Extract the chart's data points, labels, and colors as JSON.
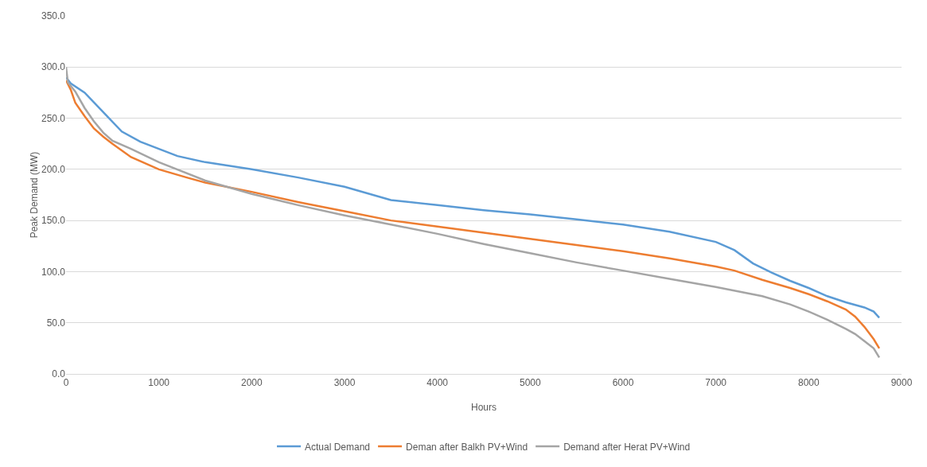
{
  "chart_data": {
    "type": "line",
    "xlabel": "Hours",
    "ylabel": "Peak Demand (MW)",
    "xlim": [
      0,
      9000
    ],
    "xticks": [
      0,
      1000,
      2000,
      3000,
      4000,
      5000,
      6000,
      7000,
      8000,
      9000
    ],
    "ylim": [
      0,
      350
    ],
    "yticks": [
      {
        "value": 0,
        "label": "0.0"
      },
      {
        "value": 50,
        "label": "50.0"
      },
      {
        "value": 100,
        "label": "100.0"
      },
      {
        "value": 150,
        "label": "150.0"
      },
      {
        "value": 200,
        "label": "200.0"
      },
      {
        "value": 250,
        "label": "250.0"
      },
      {
        "value": 300,
        "label": "300.0"
      },
      {
        "value": 350,
        "label": "350.0"
      }
    ],
    "grid": "y",
    "legend": "bottom",
    "marker": "none",
    "line_style": "solid",
    "series": [
      {
        "name": "Actual Demand",
        "color": "#5b9bd5",
        "x": [
          0,
          50,
          200,
          400,
          600,
          800,
          1000,
          1200,
          1500,
          2000,
          2500,
          3000,
          3500,
          4000,
          4500,
          5000,
          5500,
          6000,
          6500,
          7000,
          7200,
          7400,
          7600,
          7800,
          8000,
          8200,
          8400,
          8600,
          8700,
          8760
        ],
        "values": [
          290,
          284,
          275,
          256,
          237,
          227,
          220,
          213,
          207,
          200,
          192,
          183,
          170,
          165,
          160,
          156,
          151,
          146,
          139,
          129,
          121,
          108,
          99,
          91,
          84,
          76,
          70,
          65,
          61,
          55
        ]
      },
      {
        "name": "Deman after Balkh PV+Wind",
        "color": "#ed7d31",
        "x": [
          0,
          50,
          100,
          200,
          300,
          400,
          500,
          700,
          1000,
          1300,
          1500,
          2000,
          2500,
          3000,
          3500,
          4000,
          4500,
          5000,
          5500,
          6000,
          6500,
          7000,
          7200,
          7500,
          7800,
          8000,
          8200,
          8400,
          8500,
          8600,
          8700,
          8760
        ],
        "values": [
          287,
          278,
          265,
          252,
          240,
          232,
          225,
          212,
          200,
          192,
          187,
          178,
          168,
          159,
          150,
          144,
          138,
          132,
          126,
          120,
          113,
          105,
          101,
          92,
          84,
          78,
          71,
          63,
          56,
          46,
          34,
          25
        ]
      },
      {
        "name": "Demand after Herat PV+Wind",
        "color": "#a5a5a5",
        "x": [
          0,
          20,
          100,
          200,
          300,
          400,
          500,
          700,
          1000,
          1500,
          2000,
          2500,
          3000,
          3500,
          4000,
          4500,
          5000,
          5500,
          6000,
          6500,
          7000,
          7500,
          7800,
          8000,
          8200,
          8400,
          8500,
          8600,
          8700,
          8760
        ],
        "values": [
          300,
          285,
          276,
          260,
          247,
          236,
          228,
          220,
          207,
          189,
          176,
          165,
          155,
          146,
          137,
          127,
          118,
          109,
          101,
          93,
          85,
          76,
          68,
          61,
          53,
          44,
          39,
          32,
          25,
          16
        ]
      }
    ]
  }
}
